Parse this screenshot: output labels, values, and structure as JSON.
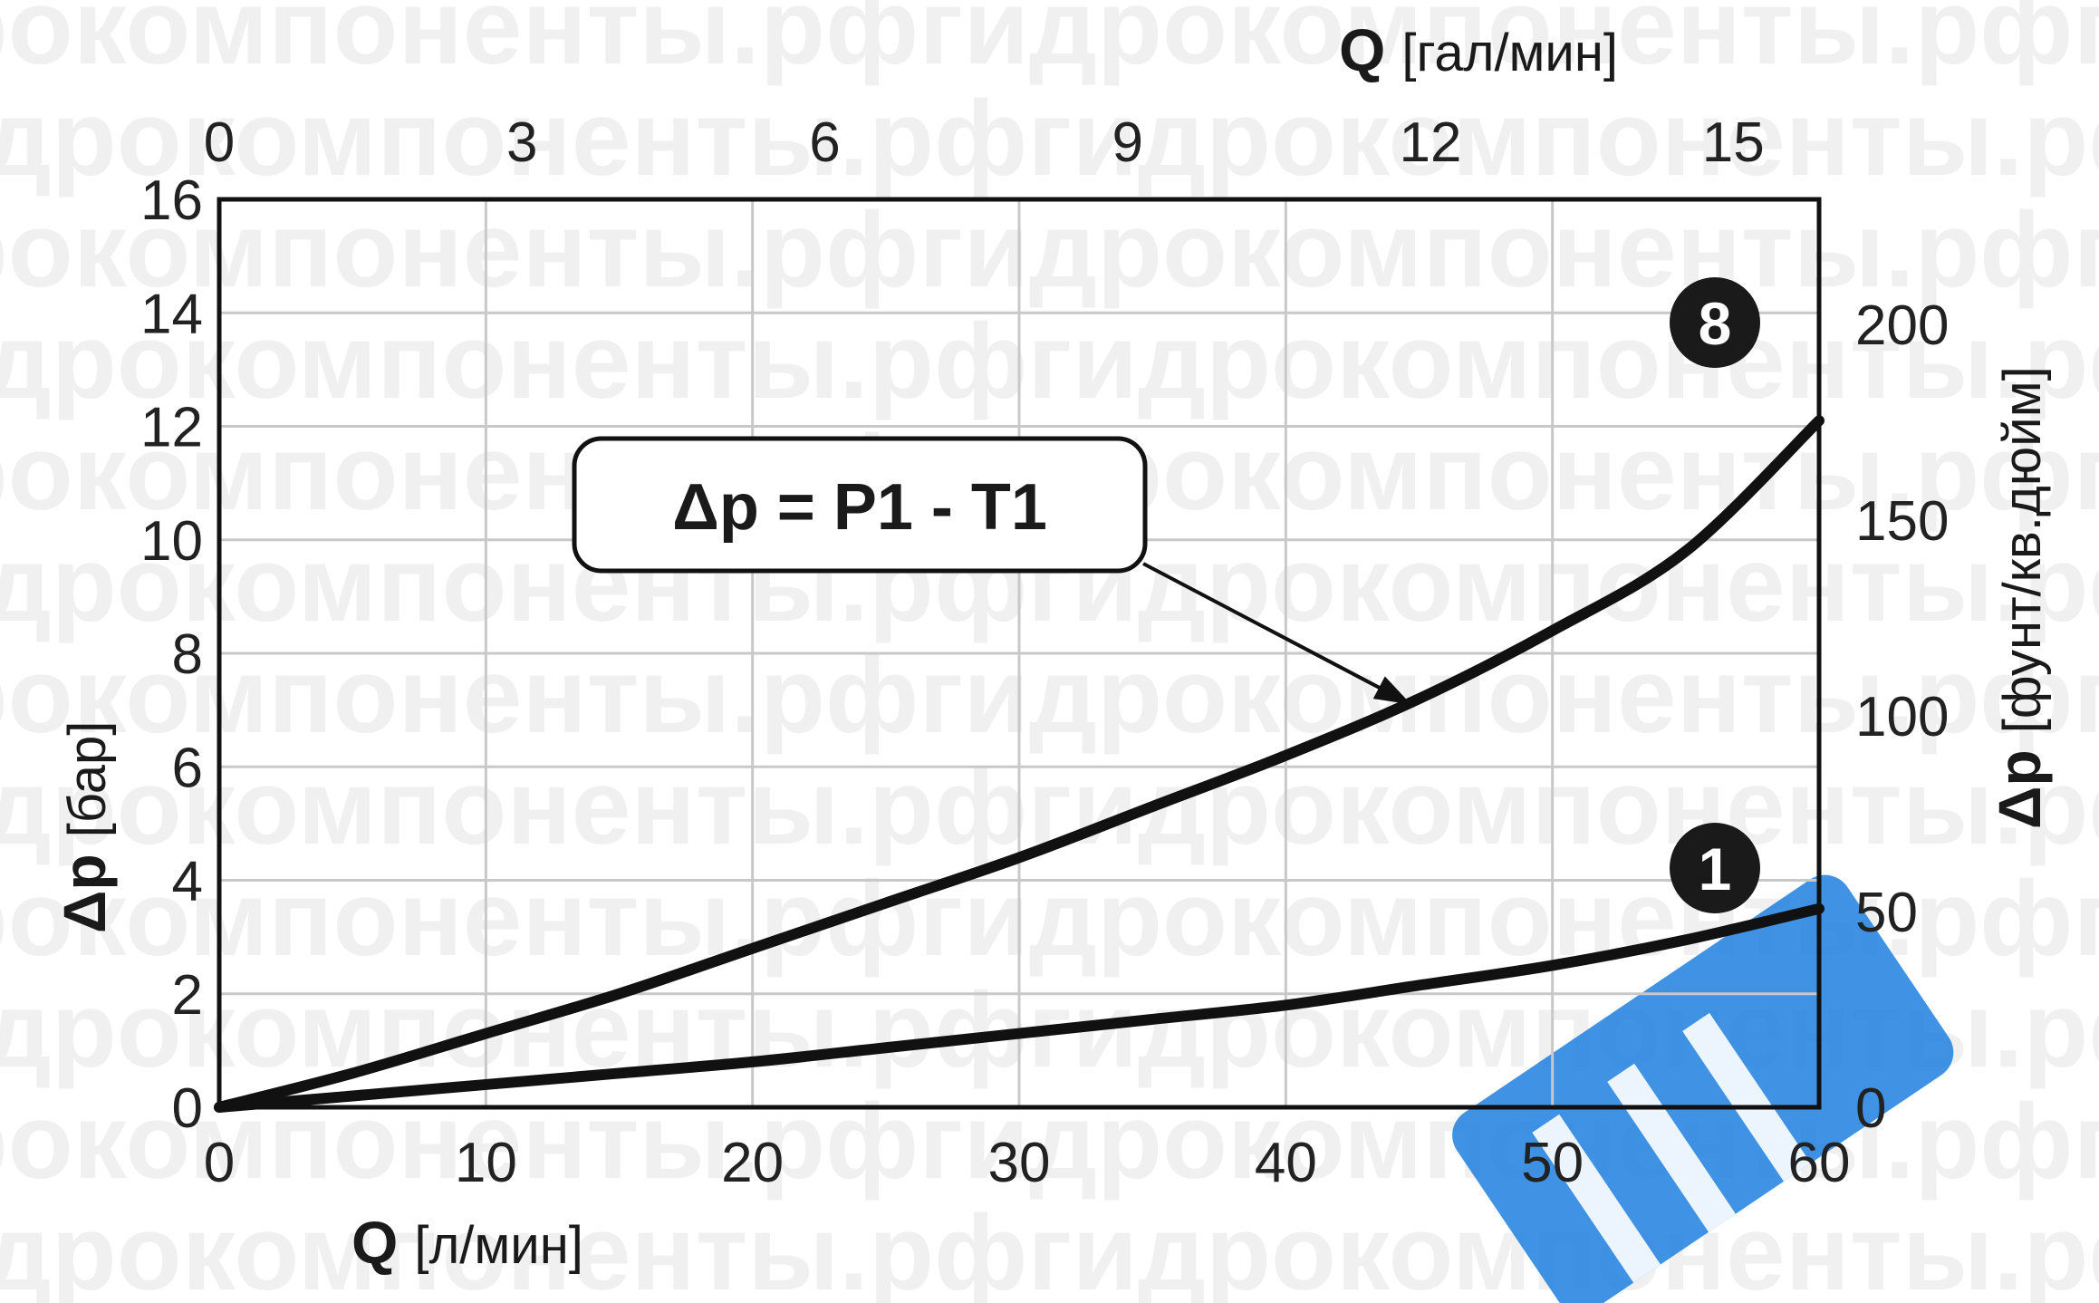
{
  "chart_data": {
    "type": "line",
    "x": [
      0,
      5,
      10,
      15,
      20,
      25,
      30,
      35,
      40,
      45,
      50,
      55,
      60
    ],
    "series": [
      {
        "name": "8",
        "values": [
          0,
          0.6,
          1.3,
          2.0,
          2.8,
          3.6,
          4.4,
          5.3,
          6.2,
          7.2,
          8.4,
          9.8,
          12.1
        ]
      },
      {
        "name": "1",
        "values": [
          0,
          0.2,
          0.4,
          0.6,
          0.8,
          1.05,
          1.3,
          1.55,
          1.8,
          2.15,
          2.5,
          2.95,
          3.5
        ]
      }
    ],
    "x_bottom": {
      "symbol": "Q",
      "unit": "[л/мин]",
      "range": [
        0,
        60
      ],
      "ticks": [
        "0",
        "10",
        "20",
        "30",
        "40",
        "50",
        "60"
      ]
    },
    "x_top": {
      "symbol": "Q",
      "unit": "[гал/мин]",
      "range": [
        0,
        15.85
      ],
      "ticks": [
        "0",
        "3",
        "6",
        "9",
        "12",
        "15"
      ]
    },
    "y_left": {
      "symbol": "Δp",
      "unit": "[бар]",
      "range": [
        0,
        16
      ],
      "ticks": [
        "0",
        "2",
        "4",
        "6",
        "8",
        "10",
        "12",
        "14",
        "16"
      ]
    },
    "y_right": {
      "symbol": "Δp",
      "unit": "[фунт/кв.дюйм]",
      "range": [
        0,
        232
      ],
      "ticks": [
        "0",
        "50",
        "100",
        "150",
        "200"
      ]
    },
    "grid": true,
    "annotation": "Δp = P1 - T1",
    "colors": {
      "line": "#111111",
      "grid": "#c8c8c8",
      "marker_fill": "#1a1a1a",
      "watermark_blue": "#1e7fe0"
    }
  },
  "watermark": "гидрокомпоненты.рф"
}
